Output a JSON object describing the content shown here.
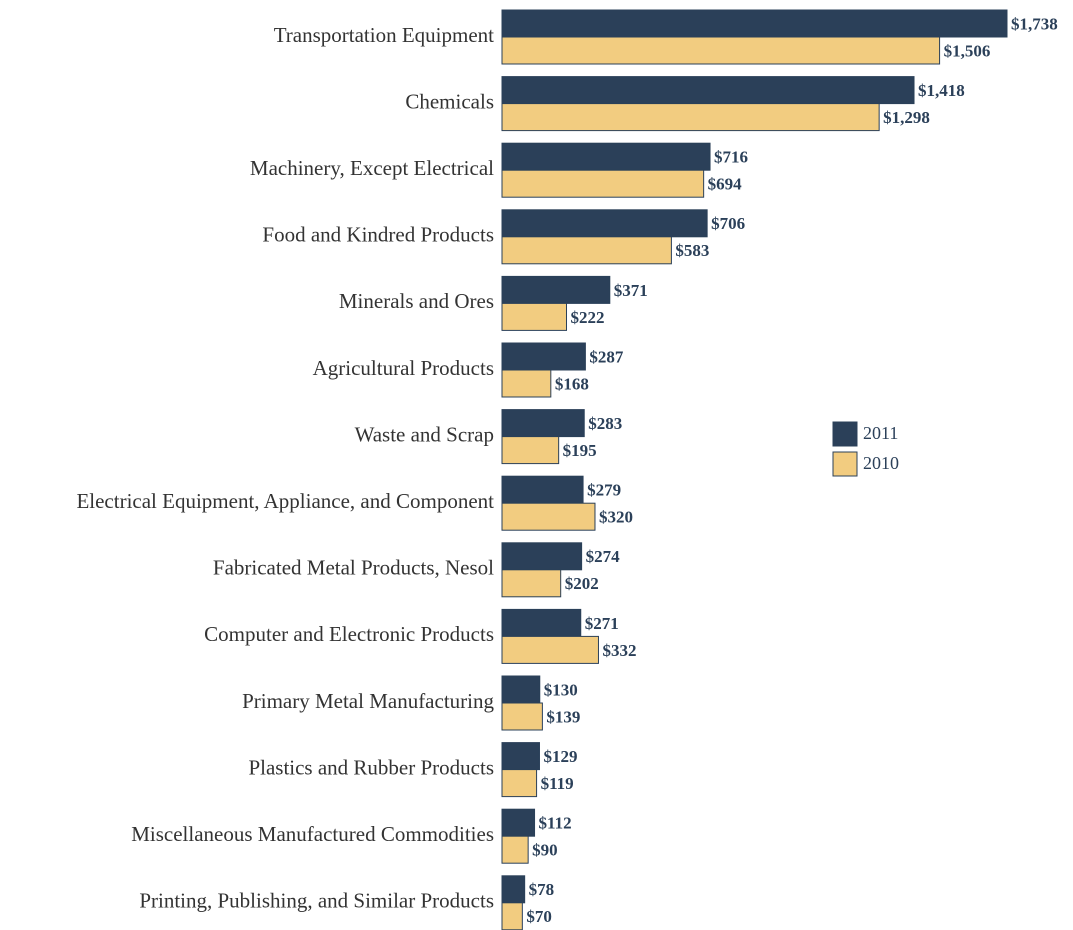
{
  "chart_data": {
    "type": "hbar",
    "categories": [
      "Transportation Equipment",
      "Chemicals",
      "Machinery, Except Electrical",
      "Food and Kindred Products",
      "Minerals and Ores",
      "Agricultural Products",
      "Waste and Scrap",
      "Electrical Equipment, Appliance, and Component",
      "Fabricated Metal Products, Nesol",
      "Computer and Electronic Products",
      "Primary Metal Manufacturing",
      "Plastics and Rubber Products",
      "Miscellaneous Manufactured Commodities",
      "Printing, Publishing, and Similar Products"
    ],
    "series": [
      {
        "name": "2011",
        "color": "#2b4059",
        "values": [
          1738,
          1418,
          716,
          706,
          371,
          287,
          283,
          279,
          274,
          271,
          130,
          129,
          112,
          78
        ],
        "value_labels": [
          "$1,738",
          "$1,418",
          "$716",
          "$706",
          "$371",
          "$287",
          "$283",
          "$279",
          "$274",
          "$271",
          "$130",
          "$129",
          "$112",
          "$78"
        ]
      },
      {
        "name": "2010",
        "color": "#f2cc80",
        "values": [
          1506,
          1298,
          694,
          583,
          222,
          168,
          195,
          320,
          202,
          332,
          139,
          119,
          90,
          70
        ],
        "value_labels": [
          "$1,506",
          "$1,298",
          "$694",
          "$583",
          "$222",
          "$168",
          "$195",
          "$320",
          "$202",
          "$332",
          "$139",
          "$119",
          "$90",
          "$70"
        ]
      }
    ],
    "legend": "right"
  }
}
